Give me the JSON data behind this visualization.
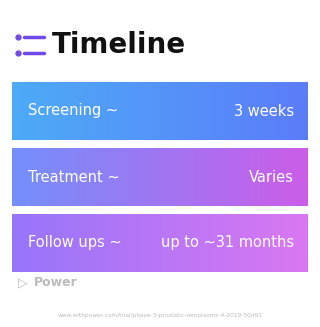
{
  "title": "Timeline",
  "background_color": "#ffffff",
  "rows": [
    {
      "left_label": "Screening ~",
      "right_label": "3 weeks",
      "gradient_start": "#4dabf7",
      "gradient_end": "#5c7cfa"
    },
    {
      "left_label": "Treatment ~",
      "right_label": "Varies",
      "gradient_start": "#748ffc",
      "gradient_end": "#cc5de8"
    },
    {
      "left_label": "Follow ups ~",
      "right_label": "up to ~31 months",
      "gradient_start": "#9775fa",
      "gradient_end": "#da77f2"
    }
  ],
  "watermark": "Power",
  "watermark_color": "#bbbbbb",
  "url_text": "www.withpower.com/trial/phase-3-prostatic-neoplasms-4-2019-50d91",
  "url_color": "#bbbbbb",
  "title_color": "#111111",
  "icon_color": "#7048e8",
  "row_text_color": "#ffffff",
  "title_fontsize": 20,
  "label_fontsize": 10.5,
  "wm_fontsize": 9,
  "url_fontsize": 4.2
}
